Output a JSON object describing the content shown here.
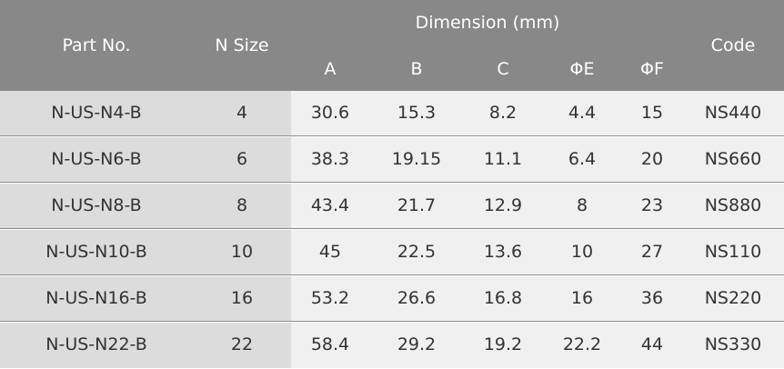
{
  "table": {
    "header": {
      "part_no": "Part No.",
      "n_size": "N Size",
      "dimension": "Dimension (mm)",
      "col_a": "A",
      "col_b": "B",
      "col_c": "C",
      "col_e": "ΦE",
      "col_f": "ΦF",
      "code": "Code"
    },
    "rows": [
      {
        "part": "N-US-N4-B",
        "size": "4",
        "a": "30.6",
        "b": "15.3",
        "c": "8.2",
        "e": "4.4",
        "f": "15",
        "code": "NS440"
      },
      {
        "part": "N-US-N6-B",
        "size": "6",
        "a": "38.3",
        "b": "19.15",
        "c": "11.1",
        "e": "6.4",
        "f": "20",
        "code": "NS660"
      },
      {
        "part": "N-US-N8-B",
        "size": "8",
        "a": "43.4",
        "b": "21.7",
        "c": "12.9",
        "e": "8",
        "f": "23",
        "code": "NS880"
      },
      {
        "part": "N-US-N10-B",
        "size": "10",
        "a": "45",
        "b": "22.5",
        "c": "13.6",
        "e": "10",
        "f": "27",
        "code": "NS110"
      },
      {
        "part": "N-US-N16-B",
        "size": "16",
        "a": "53.2",
        "b": "26.6",
        "c": "16.8",
        "e": "16",
        "f": "36",
        "code": "NS220"
      },
      {
        "part": "N-US-N22-B",
        "size": "22",
        "a": "58.4",
        "b": "29.2",
        "c": "19.2",
        "e": "22.2",
        "f": "44",
        "code": "NS330"
      }
    ]
  },
  "colors": {
    "header_bg": "#888888",
    "lead_bg": "#dcdcdc",
    "body_bg": "#f0f0f0",
    "text": "#333333"
  }
}
